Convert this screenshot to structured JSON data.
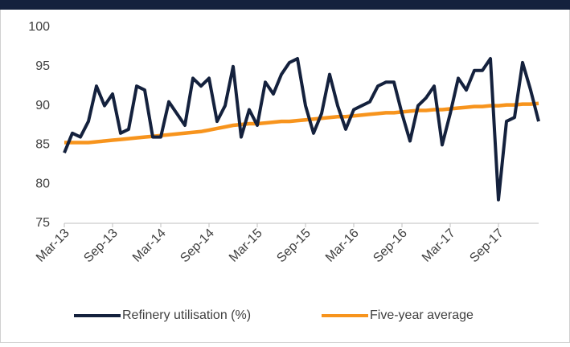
{
  "chart_data": {
    "type": "line",
    "categories": [
      "Mar-13",
      null,
      null,
      null,
      null,
      null,
      "Sep-13",
      null,
      null,
      null,
      null,
      null,
      "Mar-14",
      null,
      null,
      null,
      null,
      null,
      "Sep-14",
      null,
      null,
      null,
      null,
      null,
      "Mar-15",
      null,
      null,
      null,
      null,
      null,
      "Sep-15",
      null,
      null,
      null,
      null,
      null,
      "Mar-16",
      null,
      null,
      null,
      null,
      null,
      "Sep-16",
      null,
      null,
      null,
      null,
      null,
      "Mar-17",
      null,
      null,
      null,
      null,
      null,
      "Sep-17",
      null,
      null,
      null,
      null,
      null
    ],
    "series": [
      {
        "name": "Refinery utilisation (%)",
        "color": "#14213d",
        "values": [
          84,
          86.5,
          86,
          88,
          92.5,
          90,
          91.5,
          86.5,
          87,
          92.5,
          92,
          86,
          86,
          90.5,
          89,
          87.5,
          93.5,
          92.5,
          93.5,
          88,
          90,
          95,
          86,
          89.5,
          87.5,
          93,
          91.5,
          94,
          95.5,
          96,
          90,
          86.5,
          89,
          94,
          90,
          87,
          89.5,
          90,
          90.5,
          92.5,
          93,
          93,
          89,
          85.5,
          90,
          91,
          92.5,
          85,
          89,
          93.5,
          92,
          94.5,
          94.5,
          96,
          78,
          88,
          88.5,
          95.5,
          92,
          88
        ]
      },
      {
        "name": "Five-year average",
        "color": "#f7941d",
        "values": [
          85.3,
          85.3,
          85.3,
          85.3,
          85.4,
          85.5,
          85.6,
          85.7,
          85.8,
          85.9,
          86.0,
          86.1,
          86.2,
          86.3,
          86.4,
          86.5,
          86.6,
          86.7,
          86.9,
          87.1,
          87.3,
          87.5,
          87.6,
          87.7,
          87.7,
          87.8,
          87.9,
          88.0,
          88.0,
          88.1,
          88.2,
          88.3,
          88.4,
          88.5,
          88.6,
          88.6,
          88.7,
          88.8,
          88.9,
          89.0,
          89.1,
          89.1,
          89.2,
          89.3,
          89.4,
          89.4,
          89.5,
          89.5,
          89.6,
          89.7,
          89.8,
          89.9,
          89.9,
          90.0,
          90.0,
          90.1,
          90.1,
          90.2,
          90.2,
          90.3
        ]
      }
    ],
    "ylim": [
      75,
      100
    ],
    "yticks": [
      75,
      80,
      85,
      90,
      95,
      100
    ],
    "grid": false,
    "legend": "bottom"
  }
}
